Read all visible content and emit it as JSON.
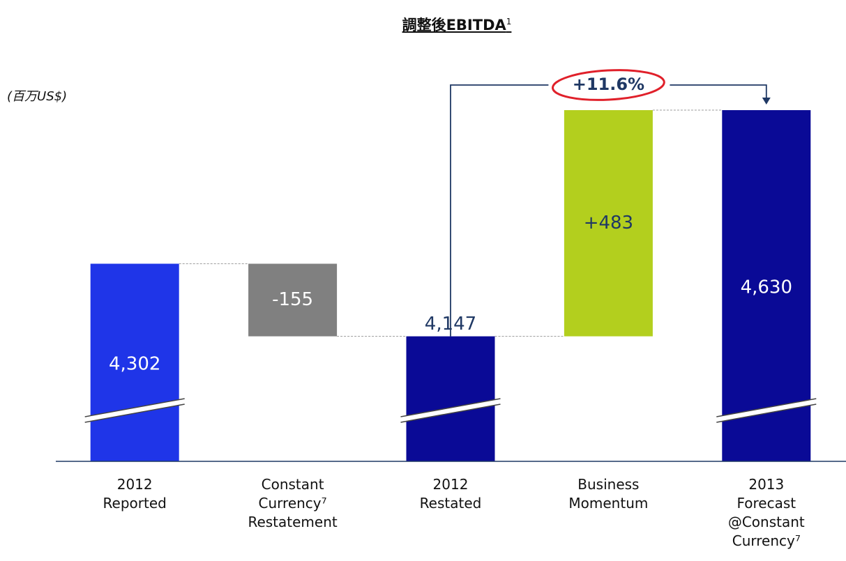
{
  "chart_data": {
    "type": "waterfall",
    "title": "調整後EBITDA",
    "title_footnote": "1",
    "unit_label": "(百万US$)",
    "categories": [
      "2012 Reported",
      "Constant Currency⁷ Restatement",
      "2012 Restated",
      "Business Momentum",
      "2013 Forecast @Constant Currency⁷"
    ],
    "measures": [
      "total",
      "relative",
      "total",
      "relative",
      "total"
    ],
    "values": [
      4302,
      -155,
      4147,
      483,
      4630
    ],
    "value_labels": [
      "4,302",
      "-155",
      "4,147",
      "+483",
      "4,630"
    ],
    "label_positions": [
      "inside",
      "inside",
      "above",
      "inside",
      "inside"
    ],
    "colors": [
      "#1f35e8",
      "#808080",
      "#0a0a96",
      "#b3cf1e",
      "#0a0a96"
    ],
    "label_colors": [
      "#ffffff",
      "#ffffff",
      "#1f3864",
      "#1f3864",
      "#ffffff"
    ],
    "ylim": [
      3880,
      4700
    ],
    "axis_broken": true,
    "annotation": "+11.6%"
  }
}
